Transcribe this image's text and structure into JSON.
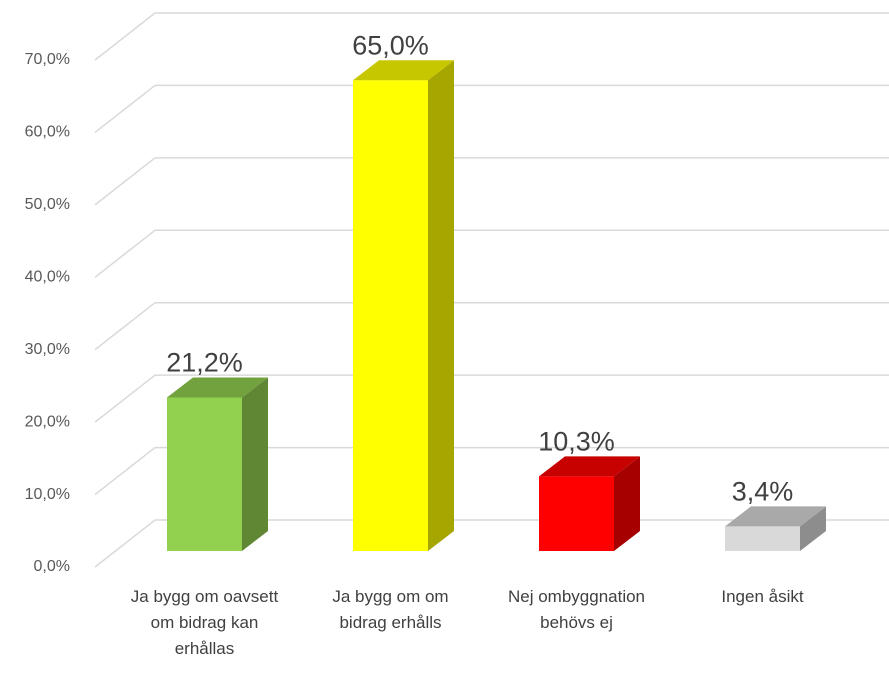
{
  "chart_data": {
    "type": "bar3d",
    "categories": [
      "Ja bygg om oavsett om bidrag kan erhållas",
      "Ja bygg om om bidrag erhålls",
      "Nej ombyggnation behövs ej",
      "Ingen åsikt"
    ],
    "values": [
      21.2,
      65.0,
      10.3,
      3.4
    ],
    "value_labels": [
      "21,2%",
      "65,0%",
      "10,3%",
      "3,4%"
    ],
    "colors": [
      "#92d050",
      "#ffff00",
      "#ff0000",
      "#d9d9d9"
    ],
    "ylim": [
      0,
      70
    ],
    "yticks": [
      {
        "value": 0,
        "label": "0,0%"
      },
      {
        "value": 10,
        "label": "10,0%"
      },
      {
        "value": 20,
        "label": "20,0%"
      },
      {
        "value": 30,
        "label": "30,0%"
      },
      {
        "value": 40,
        "label": "40,0%"
      },
      {
        "value": 50,
        "label": "50,0%"
      },
      {
        "value": 60,
        "label": "60,0%"
      },
      {
        "value": 70,
        "label": "70,0%"
      }
    ],
    "grid": true
  }
}
